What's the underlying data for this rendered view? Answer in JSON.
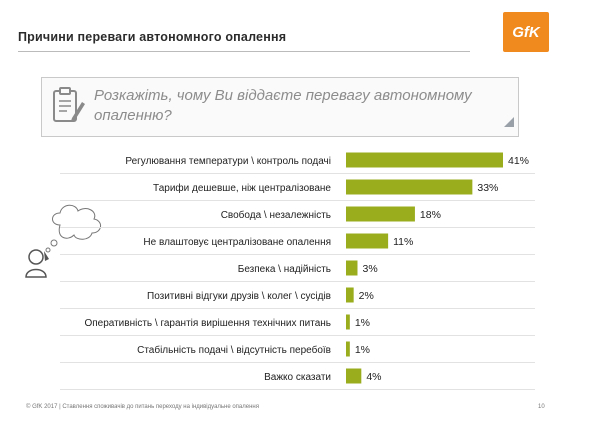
{
  "header": {
    "title": "Причини переваги автономного опалення",
    "logo_text": "GfK",
    "logo_color": "#f08a1e"
  },
  "question": {
    "text": "Розкажіть, чому Ви віддаєте перевагу автономному опаленню?",
    "icon": "clipboard-pencil-icon"
  },
  "decor": {
    "icon": "thinking-person-icon"
  },
  "chart_data": {
    "type": "bar",
    "orientation": "horizontal",
    "categories": [
      "Регулювання температури \\ контроль подачі",
      "Тарифи дешевше, ніж централізоване",
      "Свобода \\ незалежність",
      "Не влаштовує централізоване опалення",
      "Безпека \\ надійність",
      "Позитивні відгуки друзів \\ колег \\ сусідів",
      "Оперативність \\ гарантія вирішення технічних питань",
      "Стабільність подачі \\ відсутність перебоїв",
      "Важко сказати"
    ],
    "values": [
      41,
      33,
      18,
      11,
      3,
      2,
      1,
      1,
      4
    ],
    "value_labels": [
      "41%",
      "33%",
      "18%",
      "11%",
      "3%",
      "2%",
      "1%",
      "1%",
      "4%"
    ],
    "bar_color": "#9aad1c",
    "grid": false
  },
  "footer": {
    "text": "© GfK 2017 | Ставлення споживачів до питань переходу на індивідуальне опалення",
    "page": "10"
  }
}
